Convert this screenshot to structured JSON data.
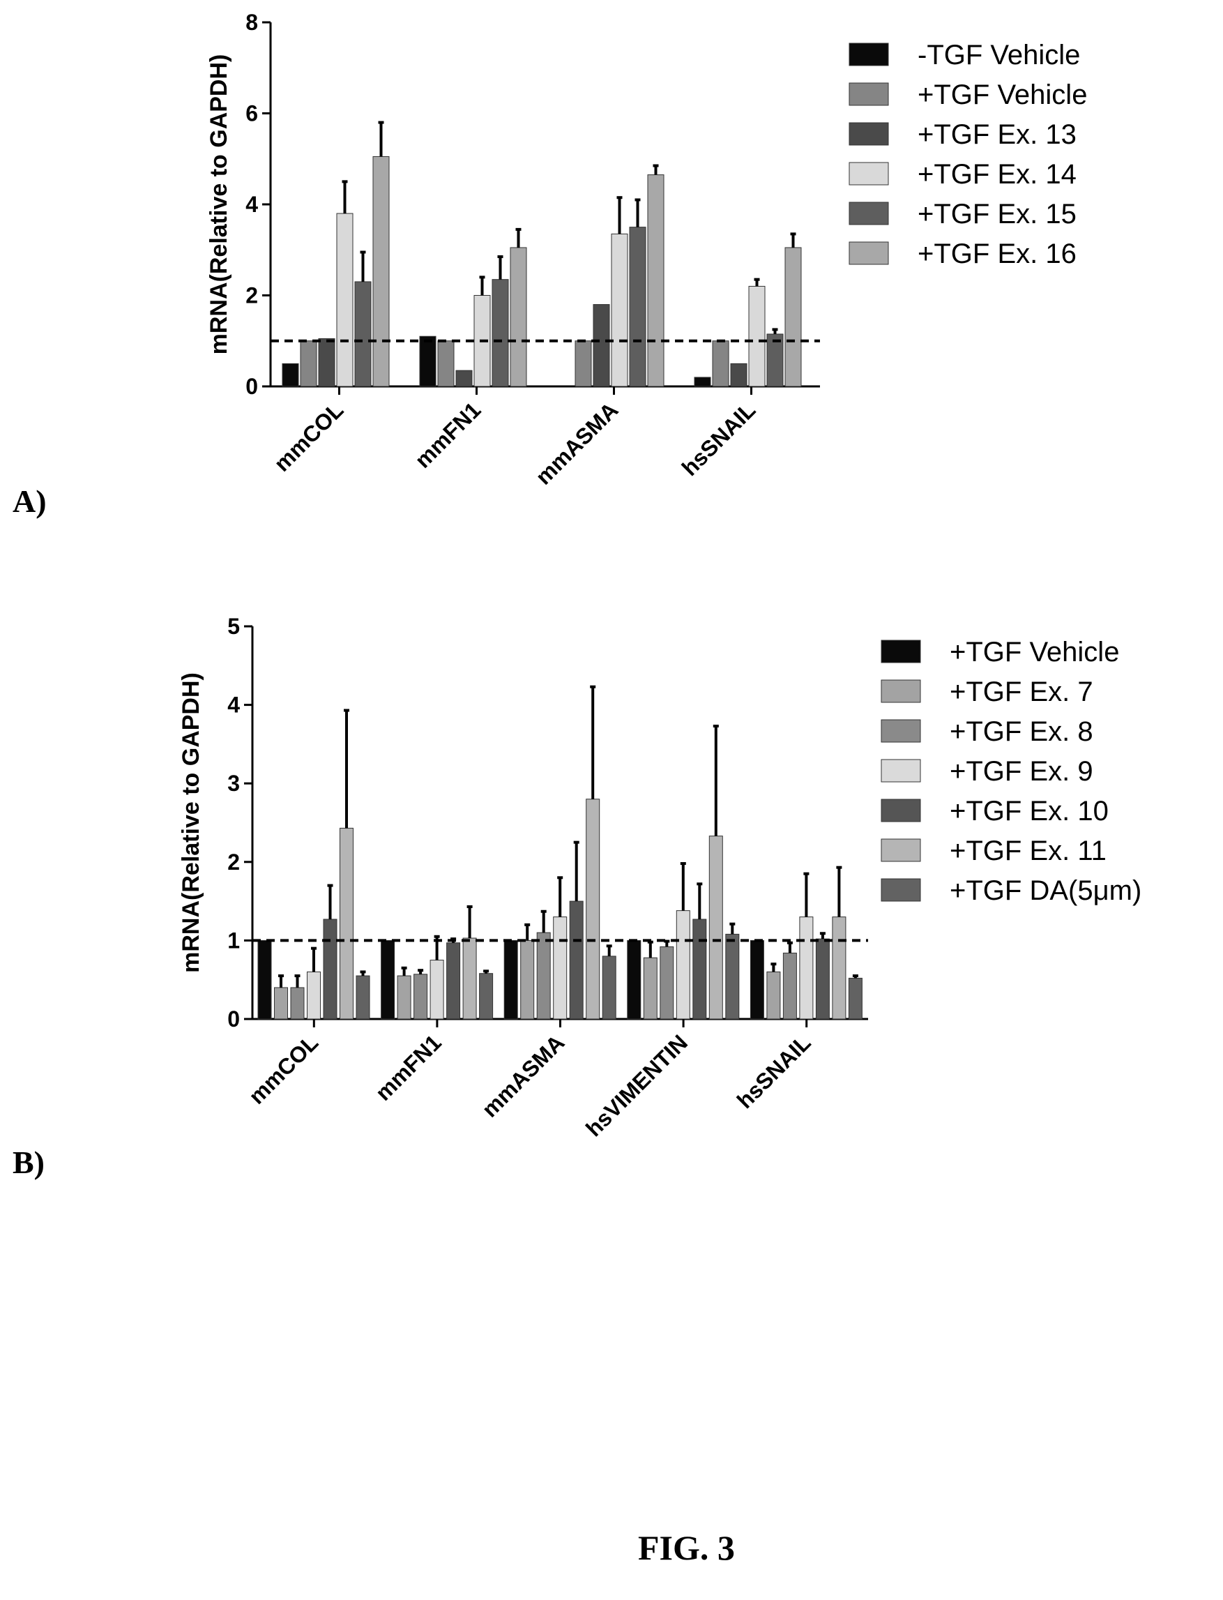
{
  "figure": {
    "caption": "FIG. 3",
    "panels": [
      "A)",
      "B)"
    ]
  },
  "chart_data": [
    {
      "type": "bar",
      "title": "",
      "xlabel": "",
      "ylabel": "mRNA(Relative to GAPDH)",
      "ylim": [
        0,
        8
      ],
      "yticks": [
        "0",
        "2",
        "4",
        "6",
        "8"
      ],
      "reference_line": 1.0,
      "legend_position": "right",
      "categories": [
        "mmCOL",
        "mmFN1",
        "mmASMA",
        "hsSNAIL"
      ],
      "series": [
        {
          "name": "-TGF Vehicle",
          "color": "#0a0a0a",
          "values": [
            0.5,
            1.1,
            0.0,
            0.2
          ],
          "errors": [
            0,
            0,
            0,
            0
          ]
        },
        {
          "name": "+TGF Vehicle",
          "color": "#858585",
          "values": [
            1.0,
            1.0,
            1.0,
            1.0
          ],
          "errors": [
            0,
            0,
            0,
            0
          ]
        },
        {
          "name": "+TGF Ex. 13",
          "color": "#4a4a4a",
          "values": [
            1.05,
            0.35,
            1.8,
            0.5
          ],
          "errors": [
            0,
            0,
            0,
            0
          ]
        },
        {
          "name": "+TGF Ex. 14",
          "color": "#d9d9d9",
          "values": [
            3.8,
            2.0,
            3.35,
            2.2
          ],
          "errors": [
            0.7,
            0.4,
            0.8,
            0.15
          ]
        },
        {
          "name": "+TGF Ex. 15",
          "color": "#5e5e5e",
          "values": [
            2.3,
            2.35,
            3.5,
            1.15
          ],
          "errors": [
            0.65,
            0.5,
            0.6,
            0.1
          ]
        },
        {
          "name": "+TGF Ex. 16",
          "color": "#a8a8a8",
          "values": [
            5.05,
            3.05,
            4.65,
            3.05
          ],
          "errors": [
            0.75,
            0.4,
            0.2,
            0.3
          ]
        }
      ]
    },
    {
      "type": "bar",
      "title": "",
      "xlabel": "",
      "ylabel": "mRNA(Relative to GAPDH)",
      "ylim": [
        0,
        5
      ],
      "yticks": [
        "0",
        "1",
        "2",
        "3",
        "4",
        "5"
      ],
      "reference_line": 1.0,
      "legend_position": "right",
      "categories": [
        "mmCOL",
        "mmFN1",
        "mmASMA",
        "hsVIMENTIN",
        "hsSNAIL"
      ],
      "series": [
        {
          "name": "+TGF Vehicle",
          "color": "#0a0a0a",
          "values": [
            1.0,
            1.0,
            1.0,
            1.0,
            1.0
          ],
          "errors": [
            0,
            0,
            0,
            0,
            0
          ]
        },
        {
          "name": "+TGF Ex. 7",
          "color": "#a3a3a3",
          "values": [
            0.4,
            0.55,
            1.0,
            0.78,
            0.6
          ],
          "errors": [
            0.15,
            0.1,
            0.2,
            0.2,
            0.1
          ]
        },
        {
          "name": "+TGF Ex. 8",
          "color": "#8a8a8a",
          "values": [
            0.4,
            0.57,
            1.1,
            0.92,
            0.84
          ],
          "errors": [
            0.15,
            0.05,
            0.27,
            0.07,
            0.13
          ]
        },
        {
          "name": "+TGF Ex. 9",
          "color": "#dadada",
          "values": [
            0.6,
            0.75,
            1.3,
            1.38,
            1.3
          ],
          "errors": [
            0.3,
            0.3,
            0.5,
            0.6,
            0.55
          ]
        },
        {
          "name": "+TGF Ex. 10",
          "color": "#555555",
          "values": [
            1.27,
            0.97,
            1.5,
            1.27,
            1.02
          ],
          "errors": [
            0.43,
            0.05,
            0.75,
            0.45,
            0.07
          ]
        },
        {
          "name": "+TGF Ex. 11",
          "color": "#b5b5b5",
          "values": [
            2.43,
            1.03,
            2.8,
            2.33,
            1.3
          ],
          "errors": [
            1.5,
            0.4,
            1.43,
            1.4,
            0.63
          ]
        },
        {
          "name": "+TGF DA(5μm)",
          "color": "#626262",
          "values": [
            0.55,
            0.58,
            0.8,
            1.08,
            0.52
          ],
          "errors": [
            0.05,
            0.03,
            0.13,
            0.13,
            0.03
          ]
        }
      ]
    }
  ]
}
